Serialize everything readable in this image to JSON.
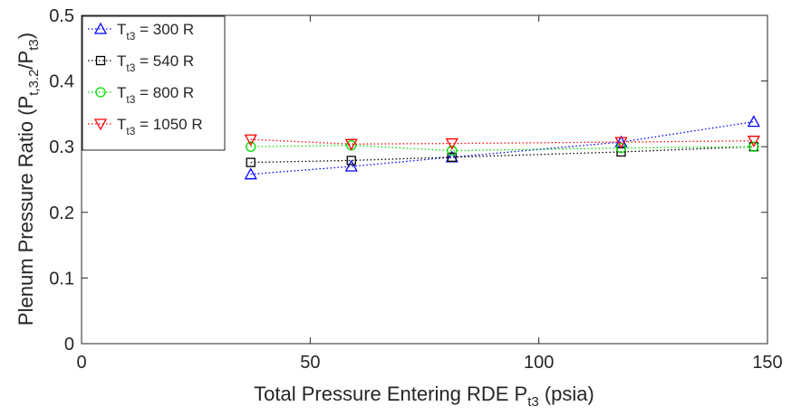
{
  "chart_data": {
    "type": "line",
    "xlabel": "Total Pressure Entering RDE P",
    "xlabel_sub": "t3",
    "xlabel_tail": " (psia)",
    "ylabel": "Plenum Pressure Ratio (P",
    "ylabel_sub1": "t,3.2",
    "ylabel_mid": "/P",
    "ylabel_sub2": "t3",
    "ylabel_tail": ")",
    "xlim": [
      0,
      150
    ],
    "ylim": [
      0,
      0.5
    ],
    "xticks": [
      0,
      50,
      100,
      150
    ],
    "yticks": [
      0,
      0.1,
      0.2,
      0.3,
      0.4,
      0.5
    ],
    "xtick_labels": [
      "0",
      "50",
      "100",
      "150"
    ],
    "ytick_labels": [
      "0",
      "0.1",
      "0.2",
      "0.3",
      "0.4",
      "0.5"
    ],
    "grid": false,
    "legend_position": "top-left",
    "series": [
      {
        "name": "T",
        "name_sub": "t3",
        "name_tail": " = 300 R",
        "color": "#0000ff",
        "marker": "triangle-up",
        "x": [
          37,
          59,
          81,
          118,
          147
        ],
        "y": [
          0.258,
          0.27,
          0.284,
          0.307,
          0.338
        ]
      },
      {
        "name": "T",
        "name_sub": "t3",
        "name_tail": " = 540 R",
        "color": "#000000",
        "marker": "square",
        "x": [
          37,
          59,
          81,
          118,
          147
        ],
        "y": [
          0.276,
          0.279,
          0.284,
          0.292,
          0.3
        ]
      },
      {
        "name": "T",
        "name_sub": "t3",
        "name_tail": " = 800 R",
        "color": "#00dd00",
        "marker": "circle",
        "x": [
          37,
          59,
          81,
          118,
          147
        ],
        "y": [
          0.3,
          0.302,
          0.294,
          0.298,
          0.3
        ]
      },
      {
        "name": "T",
        "name_sub": "t3",
        "name_tail": " = 1050 R",
        "color": "#ff0000",
        "marker": "triangle-down",
        "x": [
          37,
          59,
          81,
          118,
          147
        ],
        "y": [
          0.311,
          0.304,
          0.305,
          0.307,
          0.309
        ]
      }
    ]
  }
}
